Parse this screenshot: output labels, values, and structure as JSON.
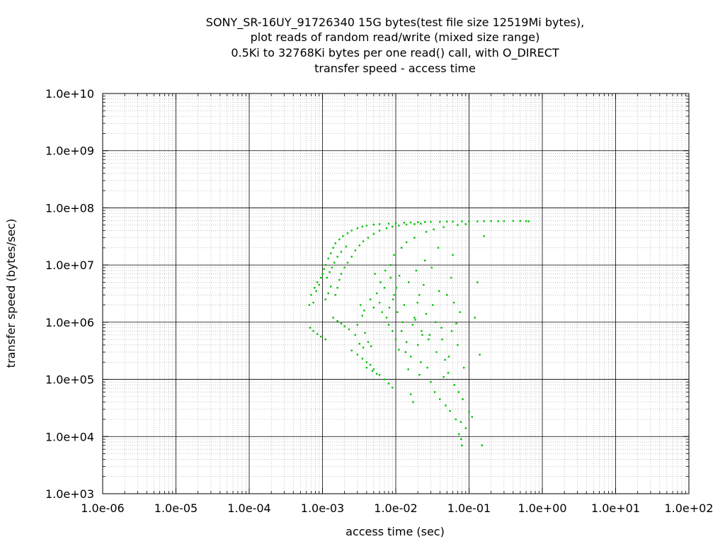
{
  "chart_data": {
    "type": "scatter",
    "title_lines": [
      "SONY_SR-16UY_91726340 15G bytes(test file size 12519Mi bytes),",
      "plot reads of random read/write (mixed size range)",
      "0.5Ki to 32768Ki bytes per one read() call, with O_DIRECT",
      "transfer speed - access time"
    ],
    "xlabel": "access time (sec)",
    "ylabel": "transfer speed (bytes/sec)",
    "xscale": "log",
    "yscale": "log",
    "xlim": [
      1e-06,
      100
    ],
    "ylim": [
      1000,
      10000000000.0
    ],
    "x_tick_labels": [
      "1.0e-06",
      "1.0e-05",
      "1.0e-04",
      "1.0e-03",
      "1.0e-02",
      "1.0e-01",
      "1.0e+00",
      "1.0e+01",
      "1.0e+02"
    ],
    "y_tick_labels": [
      "1.0e+03",
      "1.0e+04",
      "1.0e+05",
      "1.0e+06",
      "1.0e+07",
      "1.0e+08",
      "1.0e+09",
      "1.0e+10"
    ],
    "grid": true,
    "legend": "none",
    "series_color": "#00c000",
    "points": [
      [
        0.00066,
        2000000
      ],
      [
        0.0007,
        3000000
      ],
      [
        0.00075,
        2200000
      ],
      [
        0.00078,
        4000000
      ],
      [
        0.00082,
        3500000
      ],
      [
        0.00085,
        5000000
      ],
      [
        0.0009,
        4500000
      ],
      [
        0.00095,
        6000000
      ],
      [
        0.001,
        7000000
      ],
      [
        0.00105,
        8500000
      ],
      [
        0.0011,
        10000000
      ],
      [
        0.0012,
        13000000
      ],
      [
        0.0013,
        16000000
      ],
      [
        0.0014,
        20000000
      ],
      [
        0.0015,
        24000000
      ],
      [
        0.0017,
        28000000
      ],
      [
        0.0019,
        32000000
      ],
      [
        0.0022,
        36000000
      ],
      [
        0.0025,
        40000000
      ],
      [
        0.003,
        44000000
      ],
      [
        0.0035,
        47000000
      ],
      [
        0.004,
        49000000
      ],
      [
        0.005,
        51000000
      ],
      [
        0.006,
        52000000
      ],
      [
        0.008,
        53000000
      ],
      [
        0.01,
        54000000
      ],
      [
        0.013,
        55000000
      ],
      [
        0.016,
        55500000
      ],
      [
        0.02,
        56000000
      ],
      [
        0.025,
        56500000
      ],
      [
        0.03,
        57000000
      ],
      [
        0.04,
        57000000
      ],
      [
        0.05,
        57500000
      ],
      [
        0.06,
        57500000
      ],
      [
        0.08,
        58000000
      ],
      [
        0.1,
        58000000
      ],
      [
        0.13,
        58000000
      ],
      [
        0.16,
        58500000
      ],
      [
        0.2,
        58500000
      ],
      [
        0.25,
        58500000
      ],
      [
        0.3,
        58500000
      ],
      [
        0.4,
        59000000
      ],
      [
        0.5,
        59000000
      ],
      [
        0.6,
        58500000
      ],
      [
        0.65,
        58000000
      ],
      [
        0.0015,
        3000000
      ],
      [
        0.0016,
        4000000
      ],
      [
        0.0017,
        5500000
      ],
      [
        0.0018,
        7000000
      ],
      [
        0.002,
        9000000
      ],
      [
        0.0022,
        11000000
      ],
      [
        0.0025,
        14000000
      ],
      [
        0.0028,
        18000000
      ],
      [
        0.0032,
        22000000
      ],
      [
        0.0036,
        26000000
      ],
      [
        0.0042,
        30000000
      ],
      [
        0.005,
        35000000
      ],
      [
        0.006,
        40000000
      ],
      [
        0.0075,
        44000000
      ],
      [
        0.009,
        47000000
      ],
      [
        0.011,
        49000000
      ],
      [
        0.014,
        51000000
      ],
      [
        0.018,
        52000000
      ],
      [
        0.022,
        53000000
      ],
      [
        0.0011,
        2500000
      ],
      [
        0.0012,
        3200000
      ],
      [
        0.0013,
        4200000
      ],
      [
        0.00115,
        6000000
      ],
      [
        0.00125,
        7500000
      ],
      [
        0.00135,
        9000000
      ],
      [
        0.00145,
        11000000
      ],
      [
        0.0016,
        14000000
      ],
      [
        0.0018,
        17000000
      ],
      [
        0.0021,
        21000000
      ],
      [
        0.00068,
        800000
      ],
      [
        0.00075,
        700000
      ],
      [
        0.00085,
        620000
      ],
      [
        0.00095,
        560000
      ],
      [
        0.0011,
        500000
      ],
      [
        0.0014,
        1200000
      ],
      [
        0.0016,
        1050000
      ],
      [
        0.0018,
        950000
      ],
      [
        0.002,
        850000
      ],
      [
        0.0023,
        750000
      ],
      [
        0.0025,
        320000
      ],
      [
        0.003,
        270000
      ],
      [
        0.0035,
        230000
      ],
      [
        0.004,
        200000
      ],
      [
        0.0045,
        180000
      ],
      [
        0.005,
        150000
      ],
      [
        0.006,
        120000
      ],
      [
        0.007,
        100000
      ],
      [
        0.008,
        85000
      ],
      [
        0.009,
        72000
      ],
      [
        0.004,
        160000
      ],
      [
        0.0048,
        140000
      ],
      [
        0.0055,
        125000
      ],
      [
        0.0045,
        2500000
      ],
      [
        0.005,
        1800000
      ],
      [
        0.0055,
        3200000
      ],
      [
        0.006,
        2200000
      ],
      [
        0.0065,
        1500000
      ],
      [
        0.007,
        4000000
      ],
      [
        0.0075,
        1200000
      ],
      [
        0.008,
        900000
      ],
      [
        0.0085,
        6000000
      ],
      [
        0.009,
        700000
      ],
      [
        0.0095,
        3000000
      ],
      [
        0.01,
        500000
      ],
      [
        0.0105,
        1500000
      ],
      [
        0.011,
        330000
      ],
      [
        0.012,
        700000
      ],
      [
        0.013,
        2000000
      ],
      [
        0.014,
        450000
      ],
      [
        0.015,
        5000000
      ],
      [
        0.016,
        250000
      ],
      [
        0.017,
        900000
      ],
      [
        0.018,
        1200000
      ],
      [
        0.019,
        8000000
      ],
      [
        0.02,
        400000
      ],
      [
        0.021,
        3000000
      ],
      [
        0.022,
        200000
      ],
      [
        0.023,
        600000
      ],
      [
        0.025,
        12000000
      ],
      [
        0.027,
        160000
      ],
      [
        0.028,
        500000
      ],
      [
        0.03,
        90000
      ],
      [
        0.032,
        2000000
      ],
      [
        0.034,
        60000
      ],
      [
        0.036,
        300000
      ],
      [
        0.038,
        20000000
      ],
      [
        0.04,
        45000
      ],
      [
        0.042,
        800000
      ],
      [
        0.045,
        110000
      ],
      [
        0.048,
        35000
      ],
      [
        0.05,
        3000000
      ],
      [
        0.053,
        250000
      ],
      [
        0.055,
        28000
      ],
      [
        0.058,
        700000
      ],
      [
        0.06,
        15000000
      ],
      [
        0.063,
        80000
      ],
      [
        0.066,
        20000
      ],
      [
        0.07,
        400000
      ],
      [
        0.073,
        11000
      ],
      [
        0.075,
        1500000
      ],
      [
        0.078,
        9000
      ],
      [
        0.08,
        7000
      ],
      [
        0.082,
        45000
      ],
      [
        0.085,
        160000
      ],
      [
        0.09,
        14000
      ],
      [
        0.1,
        27000
      ],
      [
        0.11,
        22000
      ],
      [
        0.12,
        1200000
      ],
      [
        0.14,
        270000
      ],
      [
        0.16,
        32000000
      ],
      [
        0.15,
        7000
      ],
      [
        0.13,
        5000000
      ],
      [
        0.012,
        20000000
      ],
      [
        0.014,
        25000000
      ],
      [
        0.0095,
        15000000
      ],
      [
        0.0085,
        10000000
      ],
      [
        0.018,
        30000000
      ],
      [
        0.026,
        38000000
      ],
      [
        0.033,
        42000000
      ],
      [
        0.045,
        46000000
      ],
      [
        0.07,
        50000000
      ],
      [
        0.09,
        52000000
      ],
      [
        0.0052,
        7000000
      ],
      [
        0.0062,
        5000000
      ],
      [
        0.0072,
        8000000
      ],
      [
        0.0082,
        1800000
      ],
      [
        0.0092,
        2500000
      ],
      [
        0.0102,
        4000000
      ],
      [
        0.0112,
        6500000
      ],
      [
        0.0124,
        1000000
      ],
      [
        0.0136,
        300000
      ],
      [
        0.0148,
        150000
      ],
      [
        0.016,
        55000
      ],
      [
        0.0172,
        40000
      ],
      [
        0.0185,
        1100000
      ],
      [
        0.0198,
        2200000
      ],
      [
        0.021,
        120000
      ],
      [
        0.0225,
        700000
      ],
      [
        0.024,
        4500000
      ],
      [
        0.026,
        1400000
      ],
      [
        0.029,
        600000
      ],
      [
        0.031,
        9000000
      ],
      [
        0.035,
        1000000
      ],
      [
        0.039,
        3500000
      ],
      [
        0.043,
        500000
      ],
      [
        0.047,
        220000
      ],
      [
        0.052,
        130000
      ],
      [
        0.057,
        6000000
      ],
      [
        0.062,
        2200000
      ],
      [
        0.067,
        950000
      ],
      [
        0.072,
        60000
      ],
      [
        0.077,
        18000
      ],
      [
        0.003,
        900000
      ],
      [
        0.0035,
        1300000
      ],
      [
        0.0038,
        650000
      ],
      [
        0.0042,
        450000
      ],
      [
        0.0046,
        380000
      ],
      [
        0.0028,
        600000
      ],
      [
        0.0032,
        420000
      ],
      [
        0.0036,
        360000
      ],
      [
        0.0033,
        2000000
      ],
      [
        0.0037,
        1600000
      ]
    ]
  }
}
